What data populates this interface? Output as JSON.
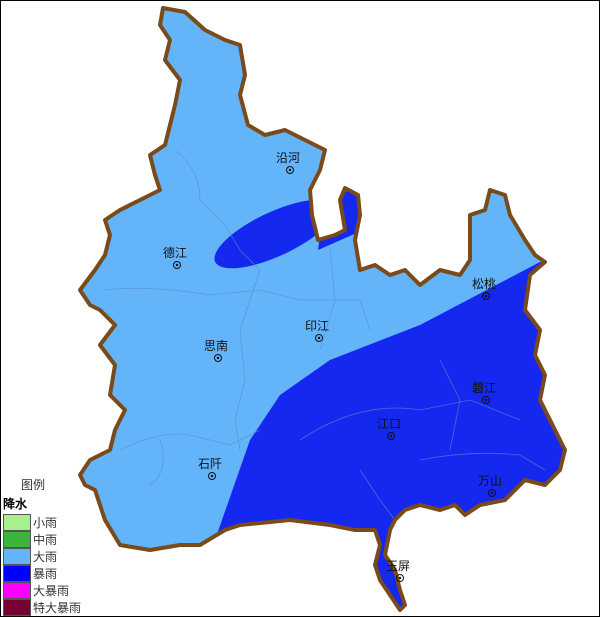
{
  "map": {
    "colors": {
      "heavy_rain": "#64b4fa",
      "rainstorm": "#1428f0",
      "border": "#7a4a1a",
      "county_line": "#5a8ccc"
    },
    "counties": [
      {
        "name": "沿河"
      },
      {
        "name": "德江"
      },
      {
        "name": "松桃"
      },
      {
        "name": "印江"
      },
      {
        "name": "思南"
      },
      {
        "name": "碧江"
      },
      {
        "name": "江口"
      },
      {
        "name": "石阡"
      },
      {
        "name": "万山"
      },
      {
        "name": "玉屏"
      }
    ]
  },
  "legend": {
    "title": "图例",
    "subtitle": "降水",
    "items": [
      {
        "label": "小雨",
        "color": "#a8f08c"
      },
      {
        "label": "中雨",
        "color": "#3cb43c"
      },
      {
        "label": "大雨",
        "color": "#64b4fa"
      },
      {
        "label": "暴雨",
        "color": "#0000ff"
      },
      {
        "label": "大暴雨",
        "color": "#ff00ff"
      },
      {
        "label": "特大暴雨",
        "color": "#780032"
      }
    ]
  }
}
